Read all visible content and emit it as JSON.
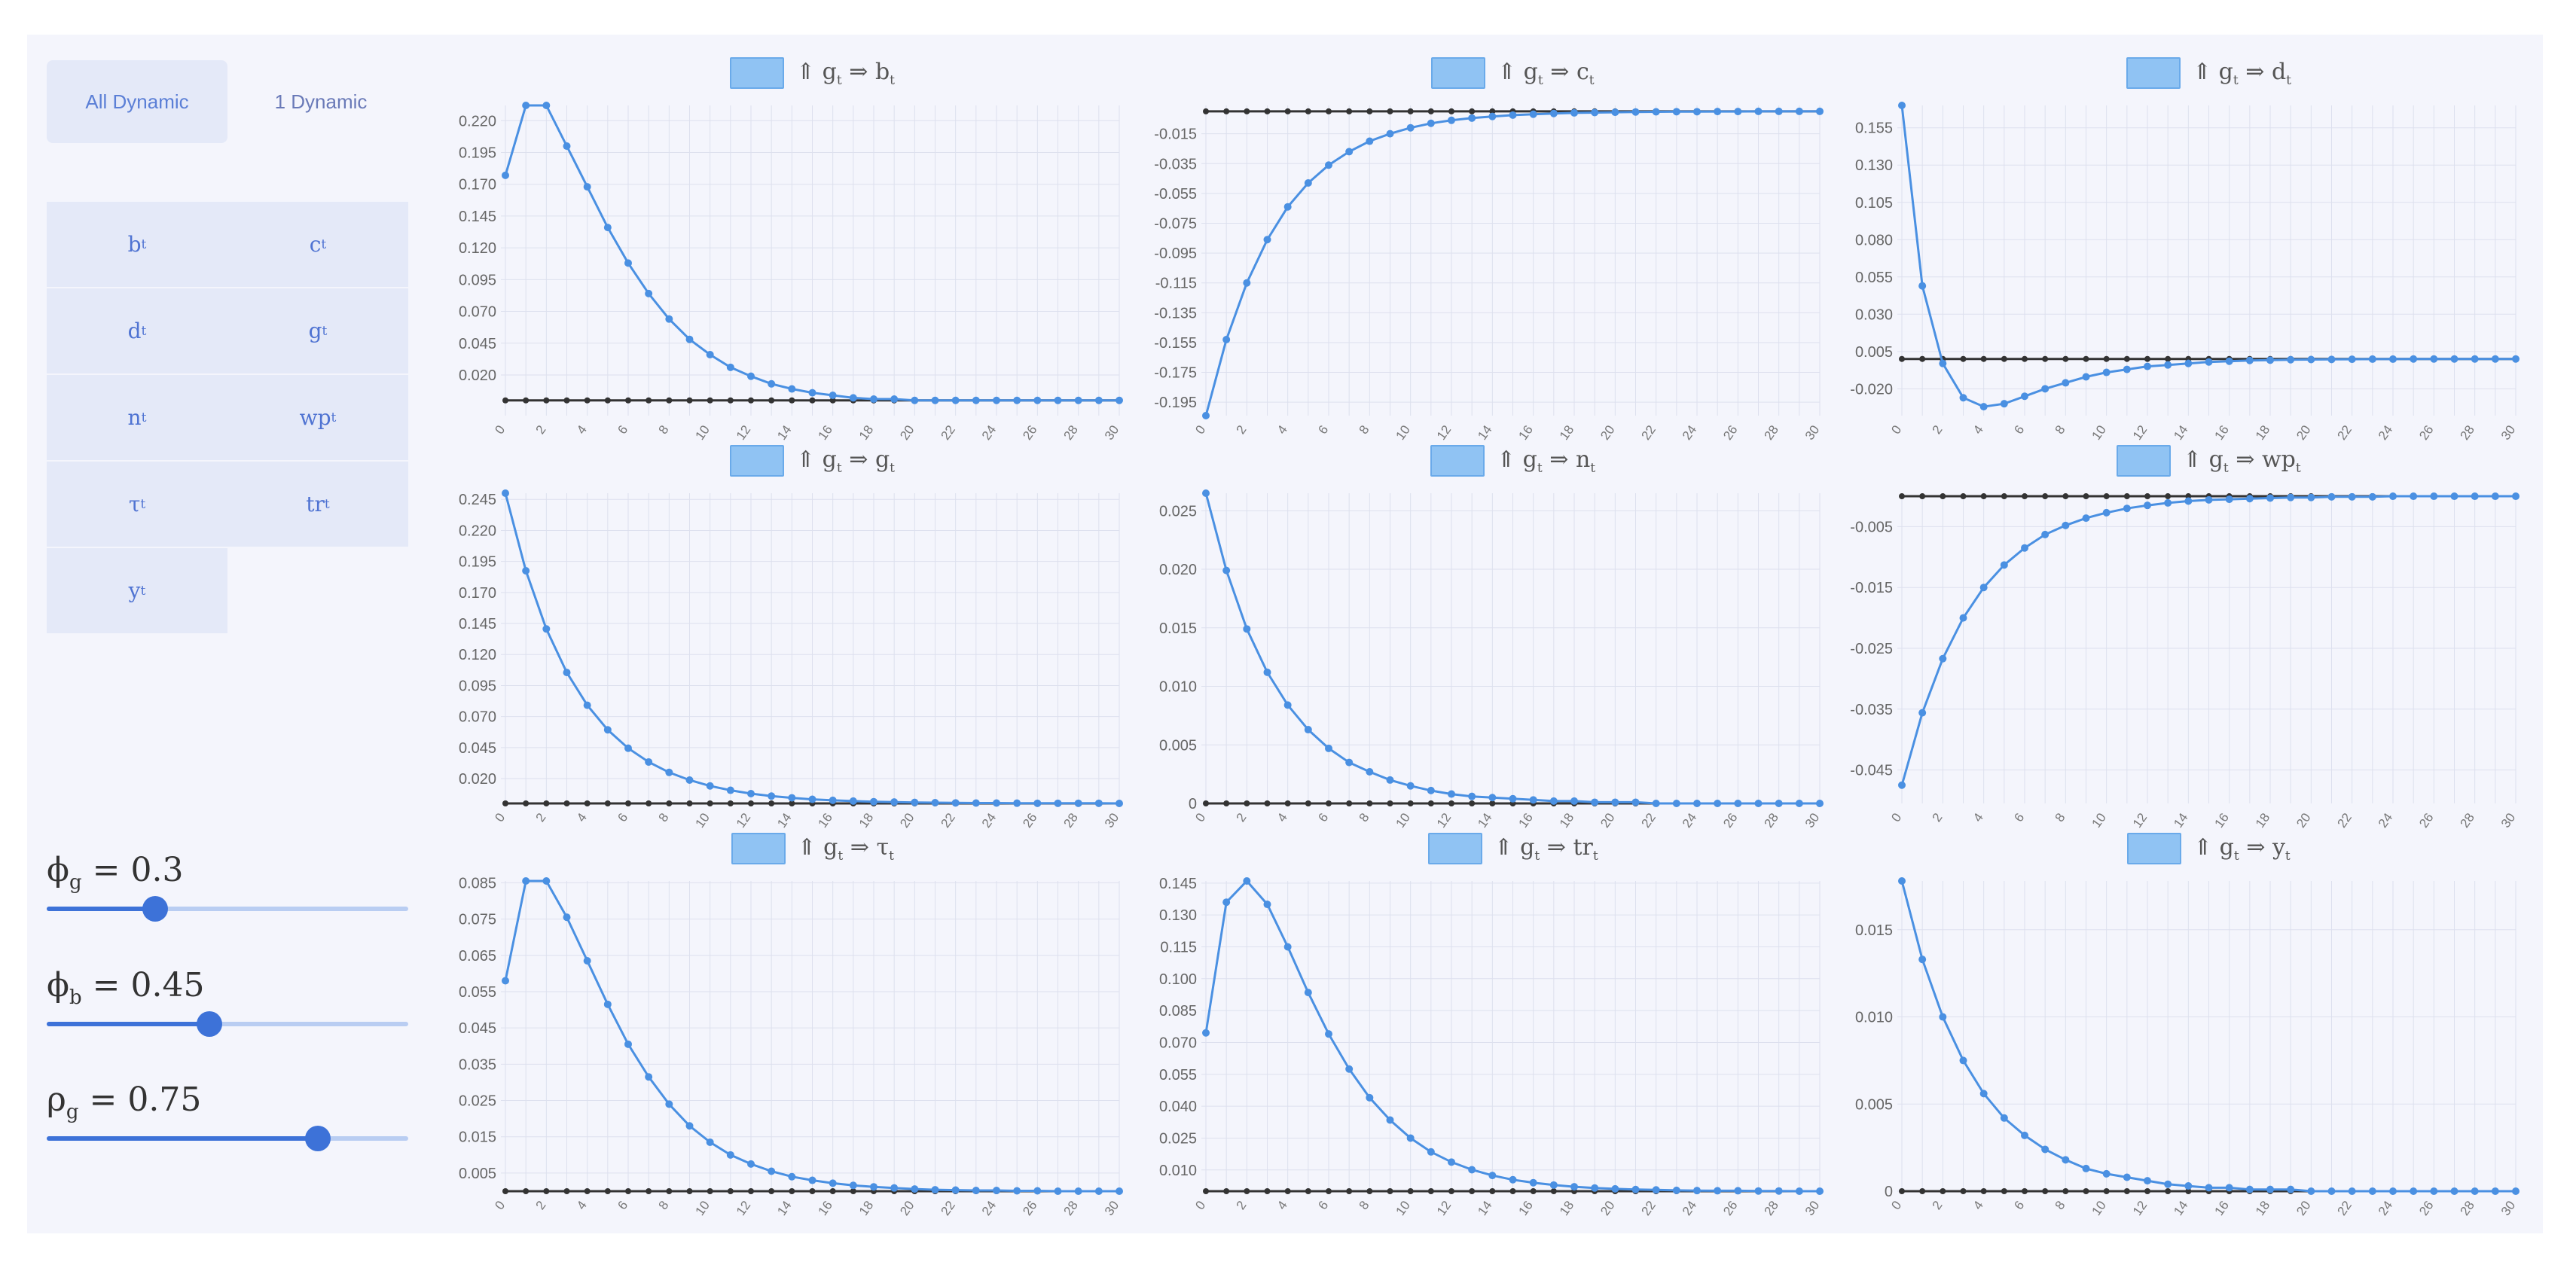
{
  "tabs": {
    "all": "All Dynamic",
    "one": "1 Dynamic"
  },
  "variables": [
    {
      "base": "b",
      "sub": "t"
    },
    {
      "base": "c",
      "sub": "t"
    },
    {
      "base": "d",
      "sub": "t"
    },
    {
      "base": "g",
      "sub": "t"
    },
    {
      "base": "n",
      "sub": "t"
    },
    {
      "base": "wp",
      "sub": "t"
    },
    {
      "base": "τ",
      "sub": "t"
    },
    {
      "base": "tr",
      "sub": "t"
    },
    {
      "base": "y",
      "sub": "t"
    }
  ],
  "params": [
    {
      "sym": "ϕ",
      "sub": "g",
      "eq": " = 0.3",
      "value": 0.3,
      "min": 0,
      "max": 1
    },
    {
      "sym": "ϕ",
      "sub": "b",
      "eq": " = 0.45",
      "value": 0.45,
      "min": 0,
      "max": 1
    },
    {
      "sym": "ρ",
      "sub": "g",
      "eq": " = 0.75",
      "value": 0.75,
      "min": 0,
      "max": 1
    }
  ],
  "colors": {
    "series": "#4a90e2",
    "baseline": "#333333",
    "accent": "#3d72d8",
    "panel": "#f4f5fc",
    "button": "#e4e9f8"
  },
  "legend_prefix": "⇑ g",
  "legend_prefix_sub": "t",
  "legend_arrow": " ⇒ ",
  "chart_data": [
    {
      "type": "line",
      "legend": {
        "base": "b",
        "sub": "t"
      },
      "y_ticks": [
        0.22,
        0.195,
        0.17,
        0.145,
        0.12,
        0.095,
        0.07,
        0.045,
        0.02
      ],
      "y_decimals": 3,
      "ylim": [
        -0.012,
        0.232
      ],
      "x_ticks": [
        0,
        2,
        4,
        6,
        8,
        10,
        12,
        14,
        16,
        18,
        20,
        22,
        24,
        26,
        28,
        30
      ],
      "x": [
        0,
        1,
        2,
        3,
        4,
        5,
        6,
        7,
        8,
        9,
        10,
        11,
        12,
        13,
        14,
        15,
        16,
        17,
        18,
        19,
        20,
        21,
        22,
        23,
        24,
        25,
        26,
        27,
        28,
        29,
        30
      ],
      "values": [
        0.177,
        0.232,
        0.232,
        0.2,
        0.168,
        0.136,
        0.108,
        0.084,
        0.064,
        0.048,
        0.036,
        0.026,
        0.019,
        0.013,
        0.009,
        0.006,
        0.004,
        0.002,
        0.001,
        0.001,
        0,
        0,
        0,
        0,
        0,
        0,
        0,
        0,
        0,
        0,
        0
      ],
      "baseline": 0
    },
    {
      "type": "line",
      "legend": {
        "base": "c",
        "sub": "t"
      },
      "y_ticks": [
        -0.015,
        -0.035,
        -0.055,
        -0.075,
        -0.095,
        -0.115,
        -0.135,
        -0.155,
        -0.175,
        -0.195
      ],
      "y_decimals": 3,
      "ylim": [
        -0.204,
        0.004
      ],
      "x_ticks": [
        0,
        2,
        4,
        6,
        8,
        10,
        12,
        14,
        16,
        18,
        20,
        22,
        24,
        26,
        28,
        30
      ],
      "x": [
        0,
        1,
        2,
        3,
        4,
        5,
        6,
        7,
        8,
        9,
        10,
        11,
        12,
        13,
        14,
        15,
        16,
        17,
        18,
        19,
        20,
        21,
        22,
        23,
        24,
        25,
        26,
        27,
        28,
        29,
        30
      ],
      "values": [
        -0.204,
        -0.153,
        -0.115,
        -0.086,
        -0.064,
        -0.048,
        -0.036,
        -0.027,
        -0.02,
        -0.015,
        -0.011,
        -0.008,
        -0.006,
        -0.0045,
        -0.0034,
        -0.0025,
        -0.0019,
        -0.0014,
        -0.001,
        -0.0008,
        -0.0006,
        -0.0004,
        -0.0003,
        -0.0002,
        -0.0002,
        -0.0001,
        -0.0001,
        0,
        0,
        0,
        0
      ],
      "baseline": 0
    },
    {
      "type": "line",
      "legend": {
        "base": "d",
        "sub": "t"
      },
      "y_ticks": [
        0.155,
        0.13,
        0.105,
        0.08,
        0.055,
        0.03,
        0.005,
        -0.02
      ],
      "y_decimals": 3,
      "ylim": [
        -0.038,
        0.17
      ],
      "x_ticks": [
        0,
        2,
        4,
        6,
        8,
        10,
        12,
        14,
        16,
        18,
        20,
        22,
        24,
        26,
        28,
        30
      ],
      "x": [
        0,
        1,
        2,
        3,
        4,
        5,
        6,
        7,
        8,
        9,
        10,
        11,
        12,
        13,
        14,
        15,
        16,
        17,
        18,
        19,
        20,
        21,
        22,
        23,
        24,
        25,
        26,
        27,
        28,
        29,
        30
      ],
      "values": [
        0.17,
        0.049,
        -0.003,
        -0.026,
        -0.032,
        -0.03,
        -0.025,
        -0.02,
        -0.016,
        -0.012,
        -0.009,
        -0.007,
        -0.005,
        -0.004,
        -0.003,
        -0.002,
        -0.0015,
        -0.001,
        -0.0008,
        -0.0005,
        -0.0004,
        -0.0003,
        -0.0002,
        -0.0001,
        -0.0001,
        0,
        0,
        0,
        0,
        0,
        0
      ],
      "baseline": 0
    },
    {
      "type": "line",
      "legend": {
        "base": "g",
        "sub": "t"
      },
      "y_ticks": [
        0.245,
        0.22,
        0.195,
        0.17,
        0.145,
        0.12,
        0.095,
        0.07,
        0.045,
        0.02
      ],
      "y_decimals": 3,
      "ylim": [
        0,
        0.25
      ],
      "x_ticks": [
        0,
        2,
        4,
        6,
        8,
        10,
        12,
        14,
        16,
        18,
        20,
        22,
        24,
        26,
        28,
        30
      ],
      "x": [
        0,
        1,
        2,
        3,
        4,
        5,
        6,
        7,
        8,
        9,
        10,
        11,
        12,
        13,
        14,
        15,
        16,
        17,
        18,
        19,
        20,
        21,
        22,
        23,
        24,
        25,
        26,
        27,
        28,
        29,
        30
      ],
      "values": [
        0.25,
        0.1875,
        0.1406,
        0.1055,
        0.0791,
        0.0593,
        0.0445,
        0.0334,
        0.025,
        0.0188,
        0.0141,
        0.0106,
        0.0079,
        0.0059,
        0.0045,
        0.0033,
        0.0025,
        0.0019,
        0.0014,
        0.0011,
        0.0008,
        0.0006,
        0.0004,
        0.0003,
        0.0003,
        0.0002,
        0.0001,
        0.0001,
        0.0001,
        0.0001,
        0
      ],
      "baseline": 0
    },
    {
      "type": "line",
      "legend": {
        "base": "n",
        "sub": "t"
      },
      "y_ticks": [
        0.025,
        0.02,
        0.015,
        0.01,
        0.005,
        0
      ],
      "y_decimals": 3,
      "ylim": [
        0,
        0.0265
      ],
      "x_ticks": [
        0,
        2,
        4,
        6,
        8,
        10,
        12,
        14,
        16,
        18,
        20,
        22,
        24,
        26,
        28,
        30
      ],
      "x": [
        0,
        1,
        2,
        3,
        4,
        5,
        6,
        7,
        8,
        9,
        10,
        11,
        12,
        13,
        14,
        15,
        16,
        17,
        18,
        19,
        20,
        21,
        22,
        23,
        24,
        25,
        26,
        27,
        28,
        29,
        30
      ],
      "values": [
        0.0265,
        0.0199,
        0.0149,
        0.0112,
        0.0084,
        0.0063,
        0.0047,
        0.0035,
        0.0027,
        0.002,
        0.0015,
        0.0011,
        0.0008,
        0.0006,
        0.0005,
        0.0004,
        0.0003,
        0.0002,
        0.0002,
        0.0001,
        0.0001,
        0.0001,
        0,
        0,
        0,
        0,
        0,
        0,
        0,
        0,
        0
      ],
      "baseline": 0
    },
    {
      "type": "line",
      "legend": {
        "base": "wp",
        "sub": "t"
      },
      "y_ticks": [
        -0.005,
        -0.015,
        -0.025,
        -0.035,
        -0.045
      ],
      "y_decimals": 3,
      "ylim": [
        -0.0505,
        0.0005
      ],
      "x_ticks": [
        0,
        2,
        4,
        6,
        8,
        10,
        12,
        14,
        16,
        18,
        20,
        22,
        24,
        26,
        28,
        30
      ],
      "x": [
        0,
        1,
        2,
        3,
        4,
        5,
        6,
        7,
        8,
        9,
        10,
        11,
        12,
        13,
        14,
        15,
        16,
        17,
        18,
        19,
        20,
        21,
        22,
        23,
        24,
        25,
        26,
        27,
        28,
        29,
        30
      ],
      "values": [
        -0.0475,
        -0.0356,
        -0.0267,
        -0.02,
        -0.015,
        -0.0113,
        -0.0085,
        -0.0063,
        -0.0048,
        -0.0036,
        -0.0027,
        -0.002,
        -0.0015,
        -0.0011,
        -0.0008,
        -0.0006,
        -0.0005,
        -0.0004,
        -0.0003,
        -0.0002,
        -0.0002,
        -0.0001,
        -0.0001,
        -0.0001,
        0,
        0,
        0,
        0,
        0,
        0,
        0
      ],
      "baseline": 0
    },
    {
      "type": "line",
      "legend": {
        "base": "τ",
        "sub": "t"
      },
      "y_ticks": [
        0.085,
        0.075,
        0.065,
        0.055,
        0.045,
        0.035,
        0.025,
        0.015,
        0.005
      ],
      "y_decimals": 3,
      "ylim": [
        0,
        0.0855
      ],
      "x_ticks": [
        0,
        2,
        4,
        6,
        8,
        10,
        12,
        14,
        16,
        18,
        20,
        22,
        24,
        26,
        28,
        30
      ],
      "x": [
        0,
        1,
        2,
        3,
        4,
        5,
        6,
        7,
        8,
        9,
        10,
        11,
        12,
        13,
        14,
        15,
        16,
        17,
        18,
        19,
        20,
        21,
        22,
        23,
        24,
        25,
        26,
        27,
        28,
        29,
        30
      ],
      "values": [
        0.058,
        0.0855,
        0.0855,
        0.0755,
        0.0635,
        0.0515,
        0.0405,
        0.0315,
        0.024,
        0.018,
        0.0135,
        0.01,
        0.0075,
        0.0055,
        0.004,
        0.003,
        0.0022,
        0.0016,
        0.0012,
        0.0009,
        0.0006,
        0.0004,
        0.0003,
        0.0002,
        0.0002,
        0.0001,
        0.0001,
        0,
        0,
        0,
        0
      ],
      "baseline": 0
    },
    {
      "type": "line",
      "legend": {
        "base": "tr",
        "sub": "t"
      },
      "y_ticks": [
        0.145,
        0.13,
        0.115,
        0.1,
        0.085,
        0.07,
        0.055,
        0.04,
        0.025,
        0.01
      ],
      "y_decimals": 3,
      "ylim": [
        0,
        0.146
      ],
      "x_ticks": [
        0,
        2,
        4,
        6,
        8,
        10,
        12,
        14,
        16,
        18,
        20,
        22,
        24,
        26,
        28,
        30
      ],
      "x": [
        0,
        1,
        2,
        3,
        4,
        5,
        6,
        7,
        8,
        9,
        10,
        11,
        12,
        13,
        14,
        15,
        16,
        17,
        18,
        19,
        20,
        21,
        22,
        23,
        24,
        25,
        26,
        27,
        28,
        29,
        30
      ],
      "values": [
        0.0745,
        0.136,
        0.146,
        0.135,
        0.115,
        0.0935,
        0.074,
        0.0575,
        0.044,
        0.0335,
        0.025,
        0.0185,
        0.0137,
        0.0101,
        0.0074,
        0.0054,
        0.004,
        0.0029,
        0.0021,
        0.0015,
        0.0011,
        0.0008,
        0.0006,
        0.0004,
        0.0003,
        0.0002,
        0.0002,
        0.0001,
        0.0001,
        0,
        0
      ],
      "baseline": 0
    },
    {
      "type": "line",
      "legend": {
        "base": "y",
        "sub": "t"
      },
      "y_ticks": [
        0.015,
        0.01,
        0.005,
        0
      ],
      "y_decimals": 3,
      "ylim": [
        0,
        0.0178
      ],
      "x_ticks": [
        0,
        2,
        4,
        6,
        8,
        10,
        12,
        14,
        16,
        18,
        20,
        22,
        24,
        26,
        28,
        30
      ],
      "x": [
        0,
        1,
        2,
        3,
        4,
        5,
        6,
        7,
        8,
        9,
        10,
        11,
        12,
        13,
        14,
        15,
        16,
        17,
        18,
        19,
        20,
        21,
        22,
        23,
        24,
        25,
        26,
        27,
        28,
        29,
        30
      ],
      "values": [
        0.0178,
        0.0133,
        0.01,
        0.0075,
        0.0056,
        0.0042,
        0.0032,
        0.0024,
        0.0018,
        0.0013,
        0.001,
        0.0008,
        0.0006,
        0.0004,
        0.0003,
        0.0002,
        0.0002,
        0.0001,
        0.0001,
        0.0001,
        0,
        0,
        0,
        0,
        0,
        0,
        0,
        0,
        0,
        0,
        0
      ],
      "baseline": 0
    }
  ]
}
